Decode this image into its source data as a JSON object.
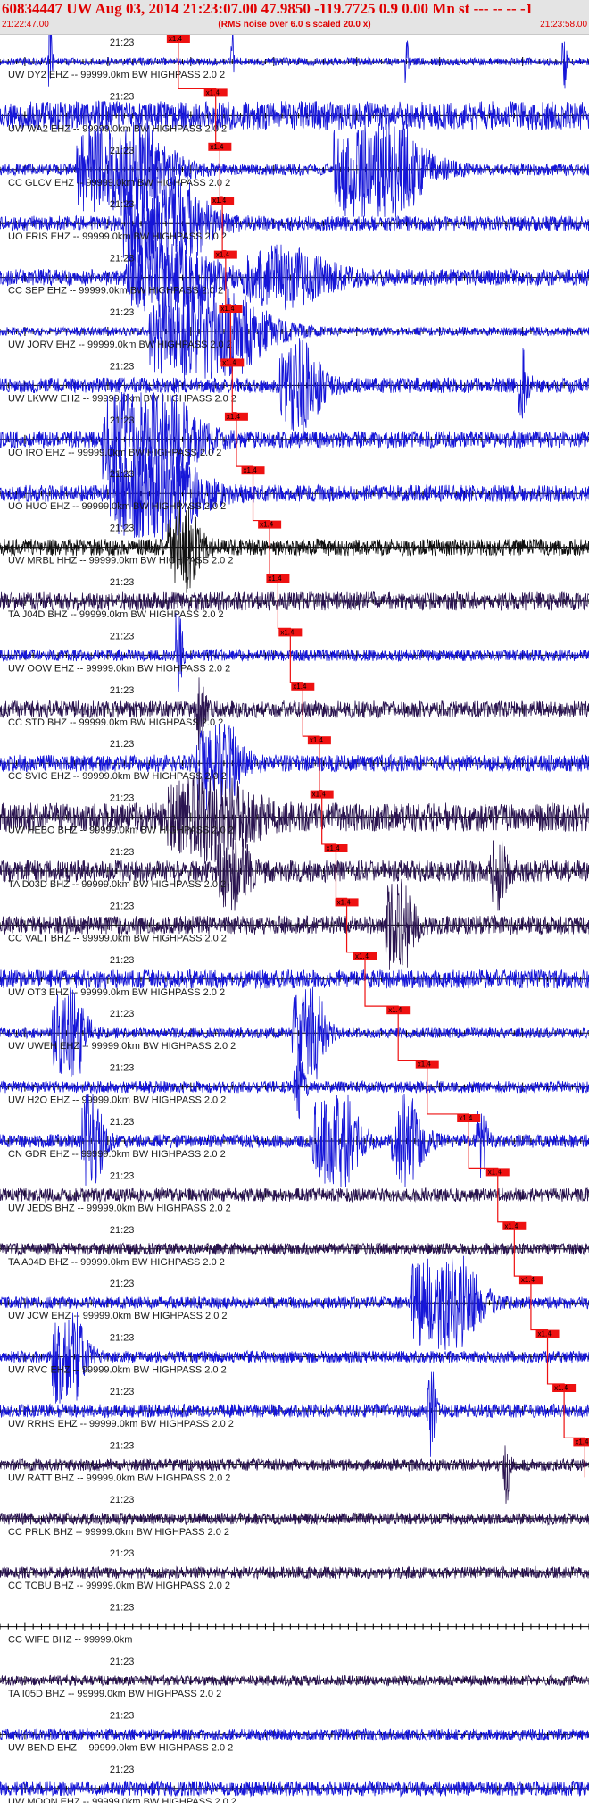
{
  "header": {
    "title": "60834447 UW Aug 03, 2014 21:23:07.00   47.9850 -119.7725  0.9 0.00 Mn st --- -- --  -1",
    "left_time": "21:22:47.00",
    "rms_note": "(RMS noise over 6.0 s scaled 20.0 x)",
    "right_time": "21:23:58.00"
  },
  "colors": {
    "header_bg": "#e4e4e4",
    "header_text": "#e00000",
    "trace_blue": "#1616d8",
    "trace_dark": "#2a1450",
    "trace_black": "#111111",
    "pick": "#ee1111",
    "axis": "#000000"
  },
  "chart_data": {
    "type": "seismogram-section",
    "time_start": "21:22:47.00",
    "time_end": "21:23:58.00",
    "minute_label": "21:23",
    "pick_label": "x1.4",
    "traces": [
      {
        "label": "UW DY2 EHZ -- 99999.0km BW  HIGHPASS  2.0  2",
        "color": "blue",
        "amp": 0.22,
        "pick": 21.5,
        "events": [
          {
            "t": 6.0,
            "a": 3.0,
            "w": 0.4
          },
          {
            "t": 28.0,
            "a": 2.0,
            "w": 0.3
          },
          {
            "t": 49.0,
            "a": 2.0,
            "w": 0.3
          },
          {
            "t": 68.0,
            "a": 2.5,
            "w": 0.4
          }
        ]
      },
      {
        "label": "UW WA2 EHZ -- 99999.0km BW  HIGHPASS  2.0  2",
        "color": "blue",
        "amp": 0.85,
        "pick": 26.0,
        "events": []
      },
      {
        "label": "CC GLCV EHZ -- 99999.0km BW  HIGHPASS  2.0  2",
        "color": "blue",
        "amp": 0.35,
        "pick": 26.5,
        "events": [
          {
            "t": 14.0,
            "a": 4.0,
            "w": 8.0
          },
          {
            "t": 45.0,
            "a": 4.0,
            "w": 8.0
          }
        ]
      },
      {
        "label": "UO FRIS EHZ -- 99999.0km BW  HIGHPASS  2.0  2",
        "color": "blue",
        "amp": 0.45,
        "pick": 26.8,
        "events": [
          {
            "t": 19.0,
            "a": 4.0,
            "w": 7.0
          }
        ]
      },
      {
        "label": "CC SEP EHZ -- 99999.0km BW  HIGHPASS  2.0  2",
        "color": "blue",
        "amp": 0.5,
        "pick": 27.2,
        "events": [
          {
            "t": 20.0,
            "a": 2.0,
            "w": 8.0
          },
          {
            "t": 34.0,
            "a": 1.5,
            "w": 8.0
          }
        ]
      },
      {
        "label": "UW JORV EHZ -- 99999.0km BW  HIGHPASS  2.0  2",
        "color": "blue",
        "amp": 0.25,
        "pick": 27.8,
        "events": [
          {
            "t": 24.0,
            "a": 4.0,
            "w": 10.0
          }
        ]
      },
      {
        "label": "UW LKWW EHZ -- 99999.0km BW  HIGHPASS  2.0  2",
        "color": "blue",
        "amp": 0.45,
        "pick": 28.0,
        "events": [
          {
            "t": 36.0,
            "a": 2.5,
            "w": 4.0
          },
          {
            "t": 63.0,
            "a": 2.0,
            "w": 1.0
          }
        ]
      },
      {
        "label": "UO IRO EHZ -- 99999.0km BW  HIGHPASS  2.0  2",
        "color": "blue",
        "amp": 0.5,
        "pick": 28.5,
        "events": [
          {
            "t": 17.0,
            "a": 4.0,
            "w": 8.0
          }
        ]
      },
      {
        "label": "UO HUO EHZ -- 99999.0km BW  HIGHPASS  2.0  2",
        "color": "blue",
        "amp": 0.5,
        "pick": 30.5,
        "events": [
          {
            "t": 18.0,
            "a": 3.0,
            "w": 8.0
          }
        ]
      },
      {
        "label": "UW MRBL HHZ -- 99999.0km BW  HIGHPASS  2.0  2",
        "color": "black",
        "amp": 0.5,
        "pick": 32.5,
        "events": [
          {
            "t": 22.0,
            "a": 2.5,
            "w": 3.0
          }
        ]
      },
      {
        "label": "TA J04D BHZ -- 99999.0km BW  HIGHPASS  2.0  2",
        "color": "dark",
        "amp": 0.55,
        "pick": 33.5,
        "events": []
      },
      {
        "label": "UW OOW EHZ -- 99999.0km BW  HIGHPASS  2.0  2",
        "color": "blue",
        "amp": 0.35,
        "pick": 35.0,
        "events": [
          {
            "t": 21.5,
            "a": 5.0,
            "w": 0.6
          }
        ]
      },
      {
        "label": "CC STD BHZ -- 99999.0km BW  HIGHPASS  2.0  2",
        "color": "dark",
        "amp": 0.5,
        "pick": 36.5,
        "events": [
          {
            "t": 24.0,
            "a": 2.0,
            "w": 1.0
          }
        ]
      },
      {
        "label": "CC SVIC EHZ -- 99999.0km BW  HIGHPASS  2.0  2",
        "color": "blue",
        "amp": 0.5,
        "pick": 38.5,
        "events": [
          {
            "t": 26.0,
            "a": 3.0,
            "w": 4.0
          }
        ]
      },
      {
        "label": "UW HEBO BHZ -- 99999.0km BW  HIGHPASS  2.0  2",
        "color": "dark",
        "amp": 0.85,
        "pick": 38.8,
        "events": [
          {
            "t": 25.0,
            "a": 2.0,
            "w": 8.0
          }
        ]
      },
      {
        "label": "TA D03D BHZ -- 99999.0km BW  HIGHPASS  2.0  2",
        "color": "dark",
        "amp": 0.65,
        "pick": 40.5,
        "events": [
          {
            "t": 28.0,
            "a": 2.0,
            "w": 3.0
          },
          {
            "t": 60.0,
            "a": 1.8,
            "w": 1.5
          }
        ]
      },
      {
        "label": "CC VALT BHZ -- 99999.0km BW  HIGHPASS  2.0  2",
        "color": "dark",
        "amp": 0.55,
        "pick": 41.8,
        "events": [
          {
            "t": 48.0,
            "a": 3.0,
            "w": 2.5
          }
        ]
      },
      {
        "label": "UW OT3 EHZ -- 99999.0km BW  HIGHPASS  2.0  2",
        "color": "blue",
        "amp": 0.55,
        "pick": 44.0,
        "events": []
      },
      {
        "label": "UW UWEH EHZ -- 99999.0km BW  HIGHPASS  2.0  2",
        "color": "blue",
        "amp": 0.3,
        "pick": 48.0,
        "events": [
          {
            "t": 8.0,
            "a": 4.0,
            "w": 3.0
          },
          {
            "t": 37.0,
            "a": 3.5,
            "w": 3.0
          }
        ]
      },
      {
        "label": "UW H2O EHZ -- 99999.0km BW  HIGHPASS  2.0  2",
        "color": "blue",
        "amp": 0.35,
        "pick": 51.5,
        "events": [
          {
            "t": 36.0,
            "a": 2.0,
            "w": 1.0
          }
        ]
      },
      {
        "label": "CN GDR EHZ -- 99999.0km BW  HIGHPASS  2.0  2",
        "color": "blue",
        "amp": 0.4,
        "pick": 56.5,
        "events": [
          {
            "t": 11.0,
            "a": 3.0,
            "w": 2.0
          },
          {
            "t": 40.0,
            "a": 4.0,
            "w": 4.0
          },
          {
            "t": 49.0,
            "a": 2.5,
            "w": 3.0
          },
          {
            "t": 58.0,
            "a": 2.0,
            "w": 1.0
          }
        ]
      },
      {
        "label": "UW JEDS BHZ -- 99999.0km BW  HIGHPASS  2.0  2",
        "color": "dark",
        "amp": 0.4,
        "pick": 60.0,
        "events": []
      },
      {
        "label": "TA A04D BHZ -- 99999.0km BW  HIGHPASS  2.0  2",
        "color": "dark",
        "amp": 0.35,
        "pick": 62.0,
        "events": []
      },
      {
        "label": "UW JCW EHZ -- 99999.0km BW  HIGHPASS  2.0  2",
        "color": "blue",
        "amp": 0.35,
        "pick": 64.0,
        "events": [
          {
            "t": 53.0,
            "a": 4.0,
            "w": 6.0
          }
        ]
      },
      {
        "label": "UW RVC EHZ -- 99999.0km BW  HIGHPASS  2.0  2",
        "color": "blue",
        "amp": 0.35,
        "pick": 66.0,
        "events": [
          {
            "t": 8.0,
            "a": 3.5,
            "w": 3.0
          }
        ]
      },
      {
        "label": "UW RRHS EHZ -- 99999.0km BW  HIGHPASS  2.0  2",
        "color": "blue",
        "amp": 0.4,
        "pick": 68.0,
        "events": [
          {
            "t": 52.0,
            "a": 3.0,
            "w": 0.8
          }
        ]
      },
      {
        "label": "UW RATT BHZ -- 99999.0km BW  HIGHPASS  2.0  2",
        "color": "dark",
        "amp": 0.35,
        "pick": 70.5,
        "events": [
          {
            "t": 61.0,
            "a": 2.5,
            "w": 0.6
          }
        ]
      },
      {
        "label": "CC PRLK BHZ -- 99999.0km BW  HIGHPASS  2.0  2",
        "color": "dark",
        "amp": 0.35,
        "pick": null,
        "events": []
      },
      {
        "label": "CC TCBU BHZ -- 99999.0km BW  HIGHPASS  2.0  2",
        "color": "dark",
        "amp": 0.35,
        "pick": null,
        "events": []
      },
      {
        "label": "CC WIFE BHZ -- 99999.0km",
        "color": "dark",
        "amp": 0.0,
        "pick": null,
        "events": []
      },
      {
        "label": "TA I05D BHZ -- 99999.0km BW  HIGHPASS  2.0  2",
        "color": "dark",
        "amp": 0.3,
        "pick": null,
        "events": []
      },
      {
        "label": "UW BEND EHZ -- 99999.0km BW  HIGHPASS  2.0  2",
        "color": "blue",
        "amp": 0.35,
        "pick": null,
        "events": []
      },
      {
        "label": "UW MOON EHZ -- 99999.0km BW  HIGHPASS  2.0  2",
        "color": "blue",
        "amp": 0.45,
        "pick": null,
        "events": []
      }
    ]
  }
}
